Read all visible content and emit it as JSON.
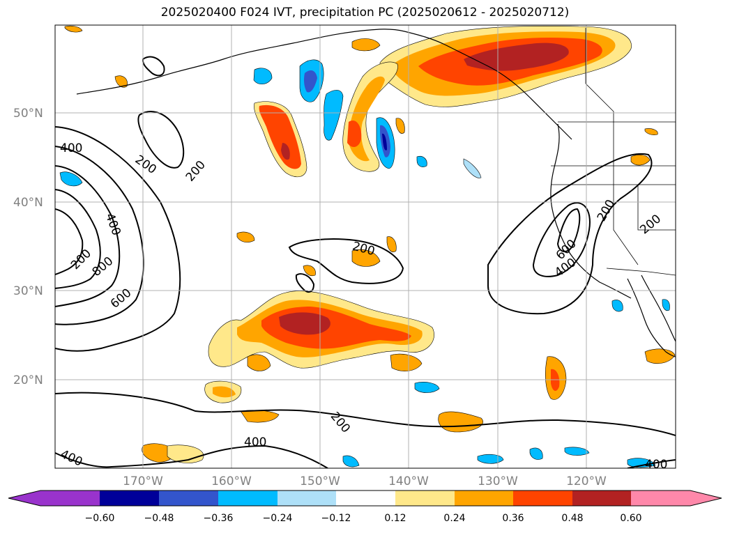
{
  "title": "2025020400 F024 IVT, precipitation PC (2025020612 - 2025020712)",
  "map": {
    "lat_labels": [
      "50°N",
      "40°N",
      "30°N",
      "20°N"
    ],
    "lon_labels": [
      "170°W",
      "160°W",
      "150°W",
      "140°W",
      "130°W",
      "120°W"
    ],
    "contour_labels": [
      "400",
      "200",
      "200",
      "400",
      "200",
      "800",
      "600",
      "200",
      "200",
      "400",
      "600",
      "400",
      "200",
      "200",
      "400",
      "400"
    ],
    "grid": true
  },
  "colorbar": {
    "ticks": [
      "−0.60",
      "−0.48",
      "−0.36",
      "−0.24",
      "−0.12",
      "0.12",
      "0.24",
      "0.36",
      "0.48",
      "0.60"
    ],
    "colors": [
      "#9933cc",
      "#000099",
      "#3355cc",
      "#00bbff",
      "#aee0f8",
      "#ffffff",
      "#ffe88a",
      "#ffa500",
      "#ff4400",
      "#b22222",
      "#ff88aa"
    ]
  },
  "palette": {
    "light_yellow": "#ffe88a",
    "orange": "#ffa500",
    "red_orange": "#ff4400",
    "dark_red": "#b22222",
    "light_blue": "#aee0f8",
    "cyan": "#00bbff",
    "medium_blue": "#3355cc",
    "navy": "#000099"
  }
}
